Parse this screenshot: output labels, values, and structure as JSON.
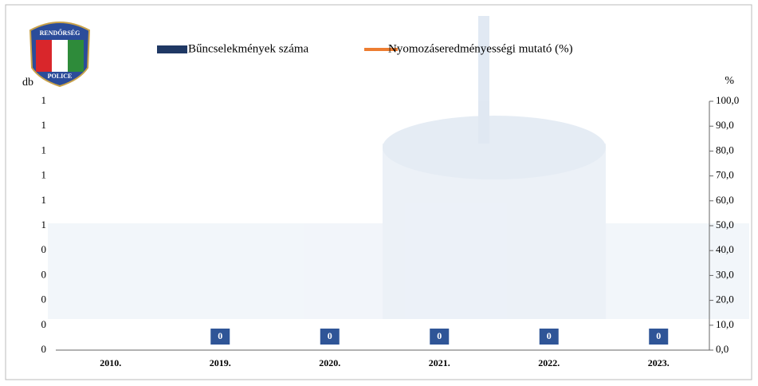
{
  "logo": {
    "top": "RENDŐRSÉG",
    "bottom": "POLICE"
  },
  "chart_data": {
    "type": "bar",
    "categories": [
      "2010.",
      "2019.",
      "2020.",
      "2021.",
      "2022.",
      "2023."
    ],
    "y_label": "db",
    "y2_label": "%",
    "series": [
      {
        "name": "Bűncselekmények száma",
        "color": "#1f3864",
        "values": [
          null,
          0,
          0,
          0,
          0,
          0
        ]
      },
      {
        "name": "Nyomozáseredményességi mutató (%)",
        "color": "#ed7d31",
        "type": "line",
        "axis": "y2",
        "values": [
          null,
          null,
          null,
          null,
          null,
          null
        ]
      }
    ],
    "ylim": [
      0,
      1
    ],
    "yticks": [
      0,
      {
        "value": 0.1,
        "label": "0"
      },
      {
        "value": 0.2,
        "label": "0"
      },
      {
        "value": 0.3,
        "label": "0"
      },
      {
        "value": 0.4,
        "label": "0"
      },
      {
        "value": 0.5,
        "label": "1"
      },
      {
        "value": 0.6,
        "label": "1"
      },
      {
        "value": 0.7,
        "label": "1"
      },
      {
        "value": 0.8,
        "label": "1"
      },
      {
        "value": 0.9,
        "label": "1"
      },
      1
    ],
    "y2lim": [
      0,
      100
    ],
    "y2ticks": [
      {
        "value": 0,
        "label": "0,0"
      },
      {
        "value": 10,
        "label": "10,0"
      },
      {
        "value": 20,
        "label": "20,0"
      },
      {
        "value": 30,
        "label": "30,0"
      },
      {
        "value": 40,
        "label": "40,0"
      },
      {
        "value": 50,
        "label": "50,0"
      },
      {
        "value": 60,
        "label": "60,0"
      },
      {
        "value": 70,
        "label": "70,0"
      },
      {
        "value": 80,
        "label": "80,0"
      },
      {
        "value": 90,
        "label": "90,0"
      },
      {
        "value": 100,
        "label": "100,0"
      }
    ]
  }
}
